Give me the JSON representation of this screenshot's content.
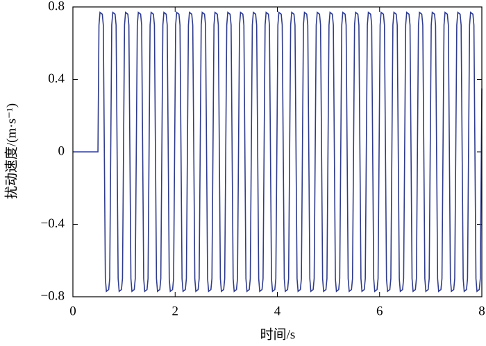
{
  "chart_data": {
    "type": "line",
    "xlabel": "时间/s",
    "ylabel": "扰动速度/(m·s⁻¹)",
    "color": "#2f3c8e",
    "xlim": [
      0,
      8
    ],
    "ylim": [
      -0.8,
      0.8
    ],
    "xticks": [
      0,
      2,
      4,
      6,
      8
    ],
    "yticks": [
      {
        "value": -0.8,
        "label": "−0.8"
      },
      {
        "value": -0.4,
        "label": "−0.4"
      },
      0,
      0.4,
      0.8
    ],
    "x": [
      0,
      0.49,
      0.51,
      0.53,
      0.575,
      0.595,
      0.635,
      0.655,
      0.7,
      0.72,
      0.76,
      0.78,
      0.825,
      0.845,
      0.885,
      0.905,
      0.95,
      0.97,
      1.01,
      1.03,
      1.075,
      1.095,
      1.135,
      1.155,
      1.2,
      1.22,
      1.26,
      1.28,
      1.325,
      1.345,
      1.385,
      1.405,
      1.45,
      1.47,
      1.51,
      1.53,
      1.575,
      1.595,
      1.635,
      1.655,
      1.7,
      1.72,
      1.76,
      1.78,
      1.825,
      1.845,
      1.885,
      1.905,
      1.95,
      1.97,
      2.01,
      2.03,
      2.075,
      2.095,
      2.135,
      2.155,
      2.2,
      2.22,
      2.26,
      2.28,
      2.325,
      2.345,
      2.385,
      2.405,
      2.45,
      2.47,
      2.51,
      2.53,
      2.575,
      2.595,
      2.635,
      2.655,
      2.7,
      2.72,
      2.76,
      2.78,
      2.825,
      2.845,
      2.885,
      2.905,
      2.95,
      2.97,
      3.01,
      3.03,
      3.075,
      3.095,
      3.135,
      3.155,
      3.2,
      3.22,
      3.26,
      3.28,
      3.325,
      3.345,
      3.385,
      3.405,
      3.45,
      3.47,
      3.51,
      3.53,
      3.575,
      3.595,
      3.635,
      3.655,
      3.7,
      3.72,
      3.76,
      3.78,
      3.825,
      3.845,
      3.885,
      3.905,
      3.95,
      3.97,
      4.01,
      4.03,
      4.075,
      4.095,
      4.135,
      4.155,
      4.2,
      4.22,
      4.26,
      4.28,
      4.325,
      4.345,
      4.385,
      4.405,
      4.45,
      4.47,
      4.51,
      4.53,
      4.575,
      4.595,
      4.635,
      4.655,
      4.7,
      4.72,
      4.76,
      4.78,
      4.825,
      4.845,
      4.885,
      4.905,
      4.95,
      4.97,
      5.01,
      5.03,
      5.075,
      5.095,
      5.135,
      5.155,
      5.2,
      5.22,
      5.26,
      5.28,
      5.325,
      5.345,
      5.385,
      5.405,
      5.45,
      5.47,
      5.51,
      5.53,
      5.575,
      5.595,
      5.635,
      5.655,
      5.7,
      5.72,
      5.76,
      5.78,
      5.825,
      5.845,
      5.885,
      5.905,
      5.95,
      5.97,
      6.01,
      6.03,
      6.075,
      6.095,
      6.135,
      6.155,
      6.2,
      6.22,
      6.26,
      6.28,
      6.325,
      6.345,
      6.385,
      6.405,
      6.45,
      6.47,
      6.51,
      6.53,
      6.575,
      6.595,
      6.635,
      6.655,
      6.7,
      6.72,
      6.76,
      6.78,
      6.825,
      6.845,
      6.885,
      6.905,
      6.95,
      6.97,
      7.01,
      7.03,
      7.075,
      7.095,
      7.135,
      7.155,
      7.2,
      7.22,
      7.26,
      7.28,
      7.325,
      7.345,
      7.385,
      7.405,
      7.45,
      7.47,
      7.51,
      7.53,
      7.575,
      7.595,
      7.635,
      7.655,
      7.7,
      7.72,
      7.76,
      7.78,
      7.825,
      7.845,
      7.885,
      7.905,
      7.95,
      7.97,
      8.0
    ],
    "values": [
      0,
      0,
      0.7,
      0.77,
      0.76,
      0.7,
      -0.7,
      -0.77,
      -0.76,
      -0.7,
      0.7,
      0.77,
      0.76,
      0.7,
      -0.7,
      -0.77,
      -0.76,
      -0.7,
      0.7,
      0.77,
      0.76,
      0.7,
      -0.7,
      -0.77,
      -0.76,
      -0.7,
      0.7,
      0.77,
      0.76,
      0.7,
      -0.7,
      -0.77,
      -0.76,
      -0.7,
      0.7,
      0.77,
      0.76,
      0.7,
      -0.7,
      -0.77,
      -0.76,
      -0.7,
      0.7,
      0.77,
      0.76,
      0.7,
      -0.7,
      -0.77,
      -0.76,
      -0.7,
      0.7,
      0.77,
      0.76,
      0.7,
      -0.7,
      -0.77,
      -0.76,
      -0.7,
      0.7,
      0.77,
      0.76,
      0.7,
      -0.7,
      -0.77,
      -0.76,
      -0.7,
      0.7,
      0.77,
      0.76,
      0.7,
      -0.7,
      -0.77,
      -0.76,
      -0.7,
      0.7,
      0.77,
      0.76,
      0.7,
      -0.7,
      -0.77,
      -0.76,
      -0.7,
      0.7,
      0.77,
      0.76,
      0.7,
      -0.7,
      -0.77,
      -0.76,
      -0.7,
      0.7,
      0.77,
      0.76,
      0.7,
      -0.7,
      -0.77,
      -0.76,
      -0.7,
      0.7,
      0.77,
      0.76,
      0.7,
      -0.7,
      -0.77,
      -0.76,
      -0.7,
      0.7,
      0.77,
      0.76,
      0.7,
      -0.7,
      -0.77,
      -0.76,
      -0.7,
      0.7,
      0.77,
      0.76,
      0.7,
      -0.7,
      -0.77,
      -0.76,
      -0.7,
      0.7,
      0.77,
      0.76,
      0.7,
      -0.7,
      -0.77,
      -0.76,
      -0.7,
      0.7,
      0.77,
      0.76,
      0.7,
      -0.7,
      -0.77,
      -0.76,
      -0.7,
      0.7,
      0.77,
      0.76,
      0.7,
      -0.7,
      -0.77,
      -0.76,
      -0.7,
      0.7,
      0.77,
      0.76,
      0.7,
      -0.7,
      -0.77,
      -0.76,
      -0.7,
      0.7,
      0.77,
      0.76,
      0.7,
      -0.7,
      -0.77,
      -0.76,
      -0.7,
      0.7,
      0.77,
      0.76,
      0.7,
      -0.7,
      -0.77,
      -0.76,
      -0.7,
      0.7,
      0.77,
      0.76,
      0.7,
      -0.7,
      -0.77,
      -0.76,
      -0.7,
      0.7,
      0.77,
      0.76,
      0.7,
      -0.7,
      -0.77,
      -0.76,
      -0.7,
      0.7,
      0.77,
      0.76,
      0.7,
      -0.7,
      -0.77,
      -0.76,
      -0.7,
      0.7,
      0.77,
      0.76,
      0.7,
      -0.7,
      -0.77,
      -0.76,
      -0.7,
      0.7,
      0.77,
      0.76,
      0.7,
      -0.7,
      -0.77,
      -0.76,
      -0.7,
      0.7,
      0.77,
      0.76,
      0.7,
      -0.7,
      -0.77,
      -0.76,
      -0.7,
      0.7,
      0.77,
      0.76,
      0.7,
      -0.7,
      -0.77,
      -0.76,
      -0.7,
      0.7,
      0.77,
      0.76,
      0.7,
      -0.7,
      -0.77,
      -0.76,
      -0.7,
      0.7,
      0.77,
      0.76,
      0.7,
      -0.7,
      -0.77,
      -0.76,
      -0.7,
      0.35
    ]
  }
}
